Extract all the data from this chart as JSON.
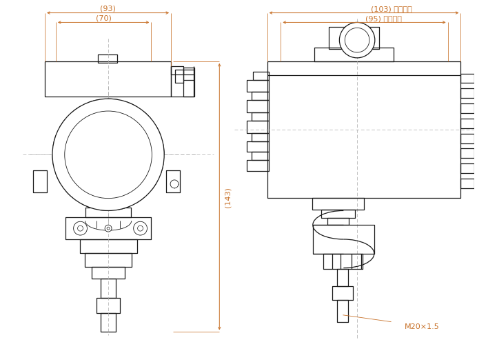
{
  "bg_color": "#ffffff",
  "line_color": "#1a1a1a",
  "dim_color": "#c8722a",
  "cl_color": "#aaaaaa",
  "annotations": {
    "dim93": "(93)",
    "dim70": "(70)",
    "dim103": "(103) 镜盖尺寸",
    "dim95": "(95) 盲盖尺寸",
    "dim143": "(143)",
    "m20": "M20×1.5"
  }
}
